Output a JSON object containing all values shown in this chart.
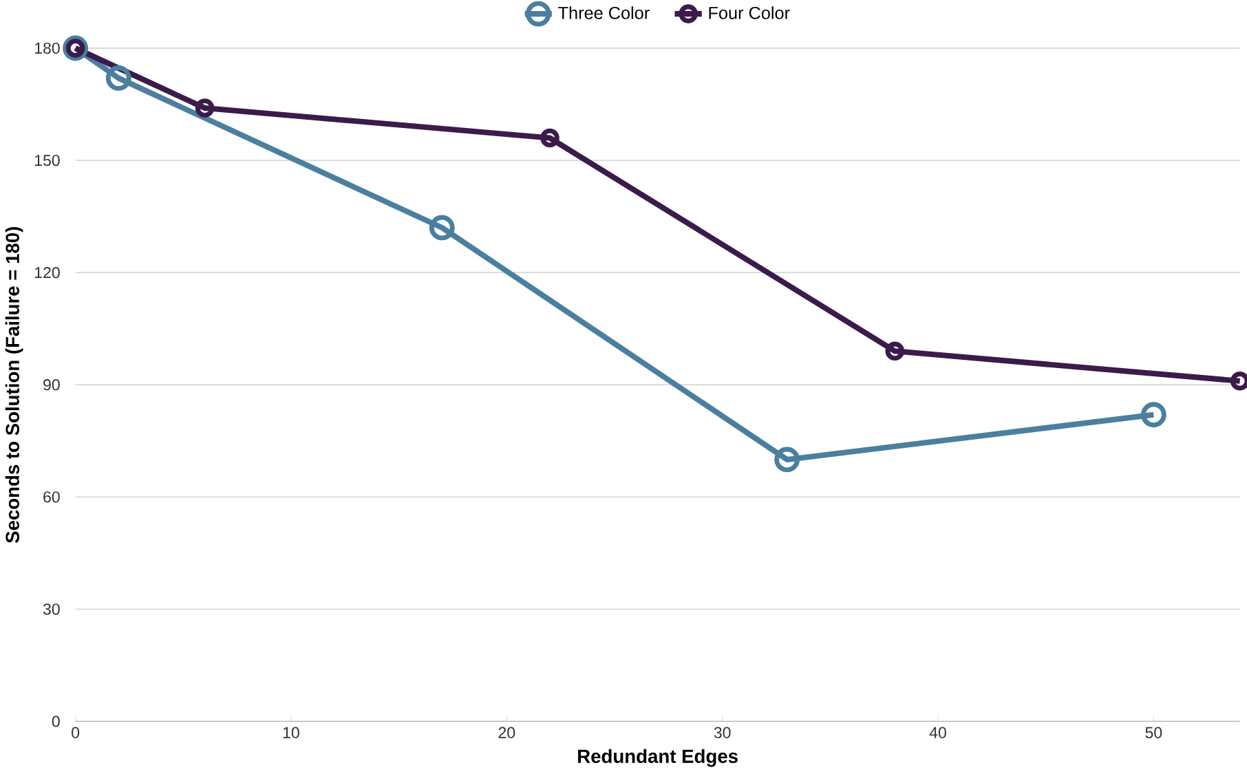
{
  "chart_data": {
    "type": "line",
    "xlabel": "Redundant Edges",
    "ylabel": "Seconds to Solution (Failure = 180)",
    "series": [
      {
        "name": "Three Color",
        "color": "#4a7fa0",
        "x": [
          0,
          2,
          17,
          33,
          50
        ],
        "values": [
          180,
          172,
          132,
          70,
          82
        ]
      },
      {
        "name": "Four Color",
        "color": "#3b1a4c",
        "x": [
          0,
          6,
          22,
          38,
          54
        ],
        "values": [
          180,
          164,
          156,
          99,
          91
        ]
      }
    ],
    "xlim": [
      0,
      54
    ],
    "ylim": [
      0,
      180
    ],
    "xticks": [
      0,
      10,
      20,
      30,
      40,
      50
    ],
    "yticks": [
      0,
      30,
      60,
      90,
      120,
      150,
      180
    ],
    "grid": "y",
    "legend": "top",
    "marker": "circle",
    "line_style": "solid"
  }
}
